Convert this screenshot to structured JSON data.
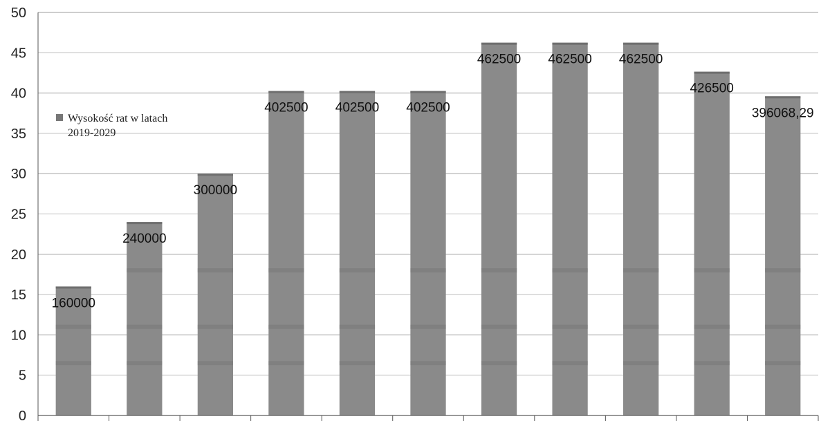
{
  "chart_data": {
    "type": "bar",
    "values": [
      16,
      24,
      30,
      40.25,
      40.25,
      40.25,
      46.25,
      46.25,
      46.25,
      42.65,
      39.6
    ],
    "data_labels": [
      "160000",
      "240000",
      "300000",
      "402500",
      "402500",
      "402500",
      "462500",
      "462500",
      "462500",
      "426500",
      "396068,29"
    ],
    "series": [
      {
        "name": "Wysokość rat w latach 2019-2029"
      }
    ],
    "legend": {
      "line1": "Wysokość rat w latach",
      "line2": "2019-2029",
      "placement": "left"
    },
    "ylim": [
      0,
      50
    ],
    "y_ticks": [
      "0",
      "5",
      "10",
      "15",
      "20",
      "25",
      "30",
      "35",
      "40",
      "45",
      "50"
    ],
    "grid": true,
    "colors": {
      "bar": "#8a8a8a",
      "bar_band": "#7a7a7a",
      "grid": "#bdbdbd",
      "axis": "#555555"
    }
  }
}
